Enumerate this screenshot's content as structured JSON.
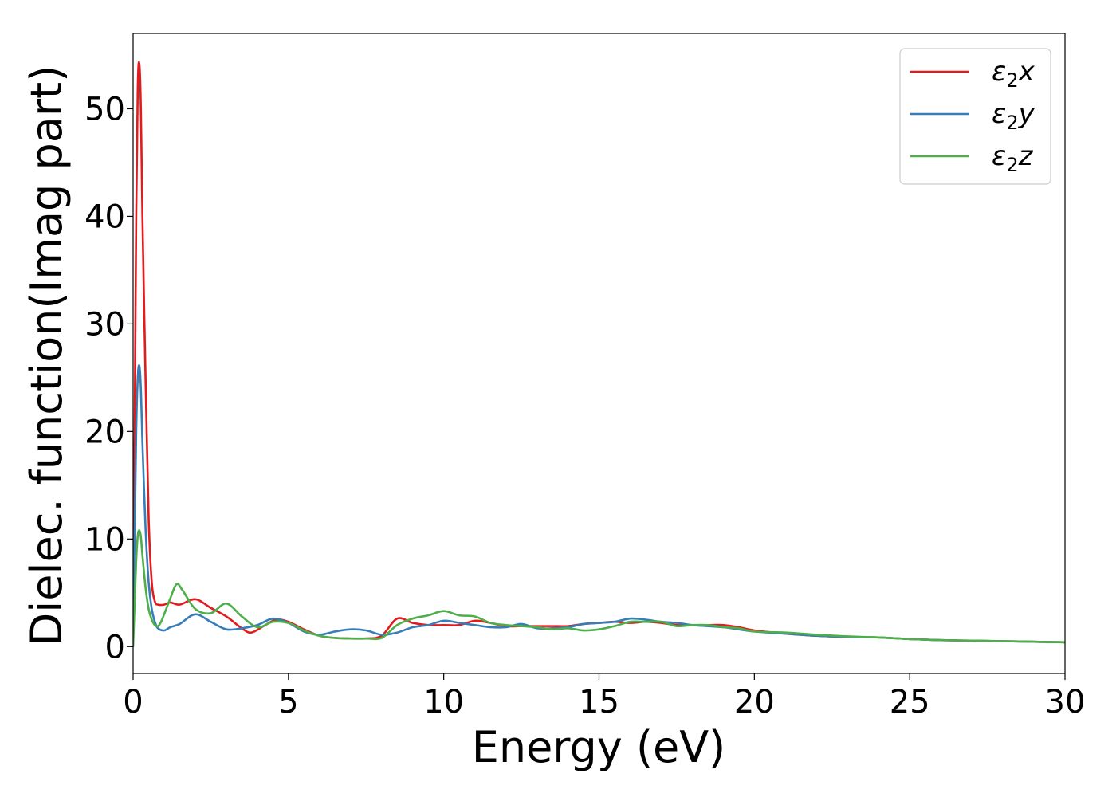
{
  "chart_data": {
    "type": "line",
    "xlabel": "Energy (eV)",
    "ylabel": "Dielec. function(Imag part)",
    "xlim": [
      0,
      30
    ],
    "ylim": [
      -2.5,
      57
    ],
    "xticks": [
      0,
      5,
      10,
      15,
      20,
      25,
      30
    ],
    "xtick_labels": [
      "0",
      "5",
      "10",
      "15",
      "20",
      "25",
      "30"
    ],
    "yticks": [
      0,
      10,
      20,
      30,
      40,
      50
    ],
    "ytick_labels": [
      "0",
      "10",
      "20",
      "30",
      "40",
      "50"
    ],
    "grid": false,
    "legend_position": "top-right",
    "legend_subscript": "2",
    "series": [
      {
        "name": "ε2x",
        "symbol": "ε",
        "suffix": "x",
        "color": "#e41a1c",
        "x": [
          0,
          0.05,
          0.1,
          0.15,
          0.2,
          0.25,
          0.3,
          0.4,
          0.5,
          0.6,
          0.7,
          0.8,
          1.0,
          1.2,
          1.5,
          2.0,
          2.5,
          3.0,
          3.5,
          3.8,
          4.2,
          4.6,
          5.0,
          5.5,
          6.0,
          6.5,
          7.0,
          7.5,
          8.0,
          8.5,
          9.0,
          9.5,
          10.0,
          10.5,
          11.0,
          11.5,
          12.0,
          12.5,
          13.0,
          13.5,
          14.0,
          14.5,
          15.0,
          15.5,
          16.0,
          16.5,
          17.0,
          17.5,
          18.0,
          18.5,
          19.0,
          19.5,
          20.0,
          21.0,
          22.0,
          23.0,
          24.0,
          25.0,
          26.0,
          27.0,
          28.0,
          29.0,
          30.0
        ],
        "y": [
          5,
          20,
          40,
          52,
          54.2,
          50,
          40,
          25,
          12,
          6,
          4.2,
          3.9,
          3.9,
          4.1,
          3.9,
          4.4,
          3.6,
          2.8,
          1.7,
          1.3,
          1.9,
          2.5,
          2.3,
          1.6,
          1.0,
          0.8,
          0.75,
          0.75,
          1.0,
          2.6,
          2.2,
          2.0,
          2.0,
          2.0,
          2.4,
          2.2,
          1.9,
          1.9,
          1.9,
          1.9,
          1.9,
          2.1,
          2.2,
          2.3,
          2.2,
          2.3,
          2.2,
          2.0,
          2.0,
          2.0,
          2.0,
          1.8,
          1.5,
          1.2,
          1.0,
          0.9,
          0.85,
          0.7,
          0.6,
          0.55,
          0.5,
          0.45,
          0.4
        ]
      },
      {
        "name": "ε2y",
        "symbol": "ε",
        "suffix": "y",
        "color": "#377eb8",
        "x": [
          0,
          0.05,
          0.1,
          0.15,
          0.2,
          0.25,
          0.3,
          0.4,
          0.5,
          0.6,
          0.7,
          0.8,
          1.0,
          1.2,
          1.5,
          2.0,
          2.5,
          3.0,
          3.5,
          4.0,
          4.5,
          5.0,
          5.5,
          6.0,
          6.5,
          7.0,
          7.5,
          8.0,
          8.5,
          9.0,
          9.5,
          10.0,
          10.5,
          11.0,
          11.5,
          12.0,
          12.5,
          13.0,
          13.5,
          14.0,
          14.5,
          15.0,
          15.5,
          16.0,
          16.5,
          17.0,
          17.5,
          18.0,
          18.5,
          19.0,
          19.5,
          20.0,
          21.0,
          22.0,
          23.0,
          24.0,
          25.0,
          26.0,
          27.0,
          28.0,
          29.0,
          30.0
        ],
        "y": [
          3,
          10,
          20,
          25,
          26.1,
          24,
          19,
          11,
          6,
          3.5,
          2.3,
          1.7,
          1.5,
          1.8,
          2.1,
          3.0,
          2.3,
          1.6,
          1.7,
          2.0,
          2.6,
          2.2,
          1.4,
          1.1,
          1.4,
          1.6,
          1.5,
          1.1,
          1.3,
          1.8,
          2.0,
          2.4,
          2.2,
          2.0,
          1.8,
          1.8,
          2.1,
          1.7,
          1.7,
          1.8,
          2.1,
          2.2,
          2.3,
          2.6,
          2.5,
          2.3,
          2.2,
          2.0,
          1.9,
          1.8,
          1.6,
          1.4,
          1.2,
          1.0,
          0.9,
          0.85,
          0.7,
          0.6,
          0.55,
          0.5,
          0.45,
          0.4
        ]
      },
      {
        "name": "ε2z",
        "symbol": "ε",
        "suffix": "z",
        "color": "#4daf4a",
        "x": [
          0,
          0.05,
          0.1,
          0.15,
          0.2,
          0.25,
          0.3,
          0.4,
          0.5,
          0.6,
          0.7,
          0.8,
          0.9,
          1.0,
          1.2,
          1.4,
          1.6,
          2.0,
          2.5,
          3.0,
          3.5,
          4.0,
          4.5,
          5.0,
          5.5,
          6.0,
          6.5,
          7.0,
          7.5,
          8.0,
          8.5,
          9.0,
          9.5,
          10.0,
          10.5,
          11.0,
          11.5,
          12.0,
          12.5,
          13.0,
          13.5,
          14.0,
          14.5,
          15.0,
          15.5,
          16.0,
          16.5,
          17.0,
          17.5,
          18.0,
          18.5,
          19.0,
          19.5,
          20.0,
          21.0,
          22.0,
          23.0,
          24.0,
          25.0,
          26.0,
          27.0,
          28.0,
          29.0,
          30.0
        ],
        "y": [
          0,
          4,
          8,
          10.3,
          10.8,
          10.2,
          8.5,
          5.5,
          3.5,
          2.5,
          2.0,
          1.9,
          2.3,
          3.0,
          4.5,
          5.8,
          5.2,
          3.5,
          3.1,
          4.0,
          2.8,
          1.8,
          2.3,
          2.2,
          1.5,
          1.0,
          0.8,
          0.75,
          0.75,
          0.8,
          2.0,
          2.6,
          2.9,
          3.3,
          2.9,
          2.8,
          2.2,
          2.0,
          1.9,
          1.8,
          1.6,
          1.7,
          1.5,
          1.6,
          1.9,
          2.3,
          2.3,
          2.3,
          1.9,
          2.0,
          2.0,
          1.8,
          1.7,
          1.4,
          1.3,
          1.1,
          0.95,
          0.85,
          0.7,
          0.6,
          0.55,
          0.5,
          0.45,
          0.4
        ]
      }
    ]
  }
}
